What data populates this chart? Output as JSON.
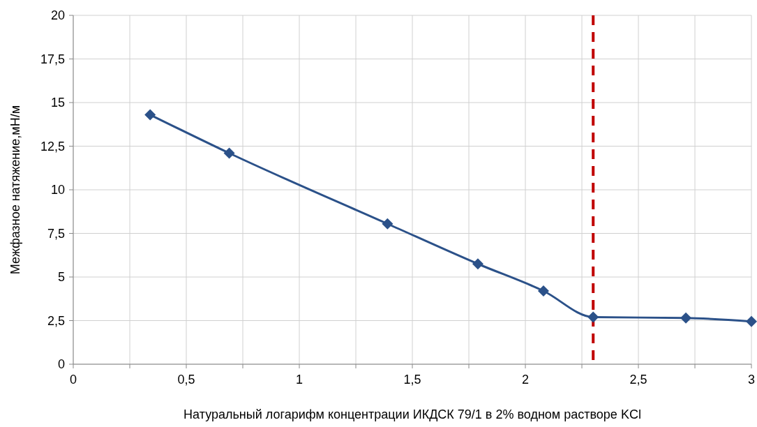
{
  "chart_data": {
    "type": "line",
    "xlabel": "Натуральный логарифм концентрации ИКДСК 79/1 в 2% водном растворе KCl",
    "ylabel": "Межфазное натяжение,мН/м",
    "x": [
      0.34,
      0.69,
      1.39,
      1.79,
      2.08,
      2.3,
      2.71,
      3.0
    ],
    "series": [
      {
        "color": "#2b5189",
        "values": [
          14.3,
          12.1,
          8.05,
          5.75,
          4.2,
          2.7,
          2.65,
          2.45
        ]
      }
    ],
    "xlim": [
      0,
      3
    ],
    "xticks": [
      0,
      {
        "value": 0.25,
        "label": null
      },
      {
        "value": 0.5,
        "label": "0,5"
      },
      {
        "value": 0.75,
        "label": null
      },
      1,
      {
        "value": 1.25,
        "label": null
      },
      {
        "value": 1.5,
        "label": "1,5"
      },
      {
        "value": 1.75,
        "label": null
      },
      2,
      {
        "value": 2.25,
        "label": null
      },
      {
        "value": 2.5,
        "label": "2,5"
      },
      {
        "value": 2.75,
        "label": null
      },
      3
    ],
    "ylim": [
      0,
      20
    ],
    "yticks": [
      0,
      {
        "value": 2.5,
        "label": "2,5"
      },
      5,
      {
        "value": 7.5,
        "label": "7,5"
      },
      10,
      {
        "value": 12.5,
        "label": "12,5"
      },
      15,
      {
        "value": 17.5,
        "label": "17,5"
      },
      20
    ],
    "ref_lines": [
      {
        "axis": "x",
        "value": 2.3,
        "color": "#c00000",
        "line_style": "dashed"
      }
    ],
    "grid": true,
    "marker": "diamond",
    "line_style": "solid"
  }
}
